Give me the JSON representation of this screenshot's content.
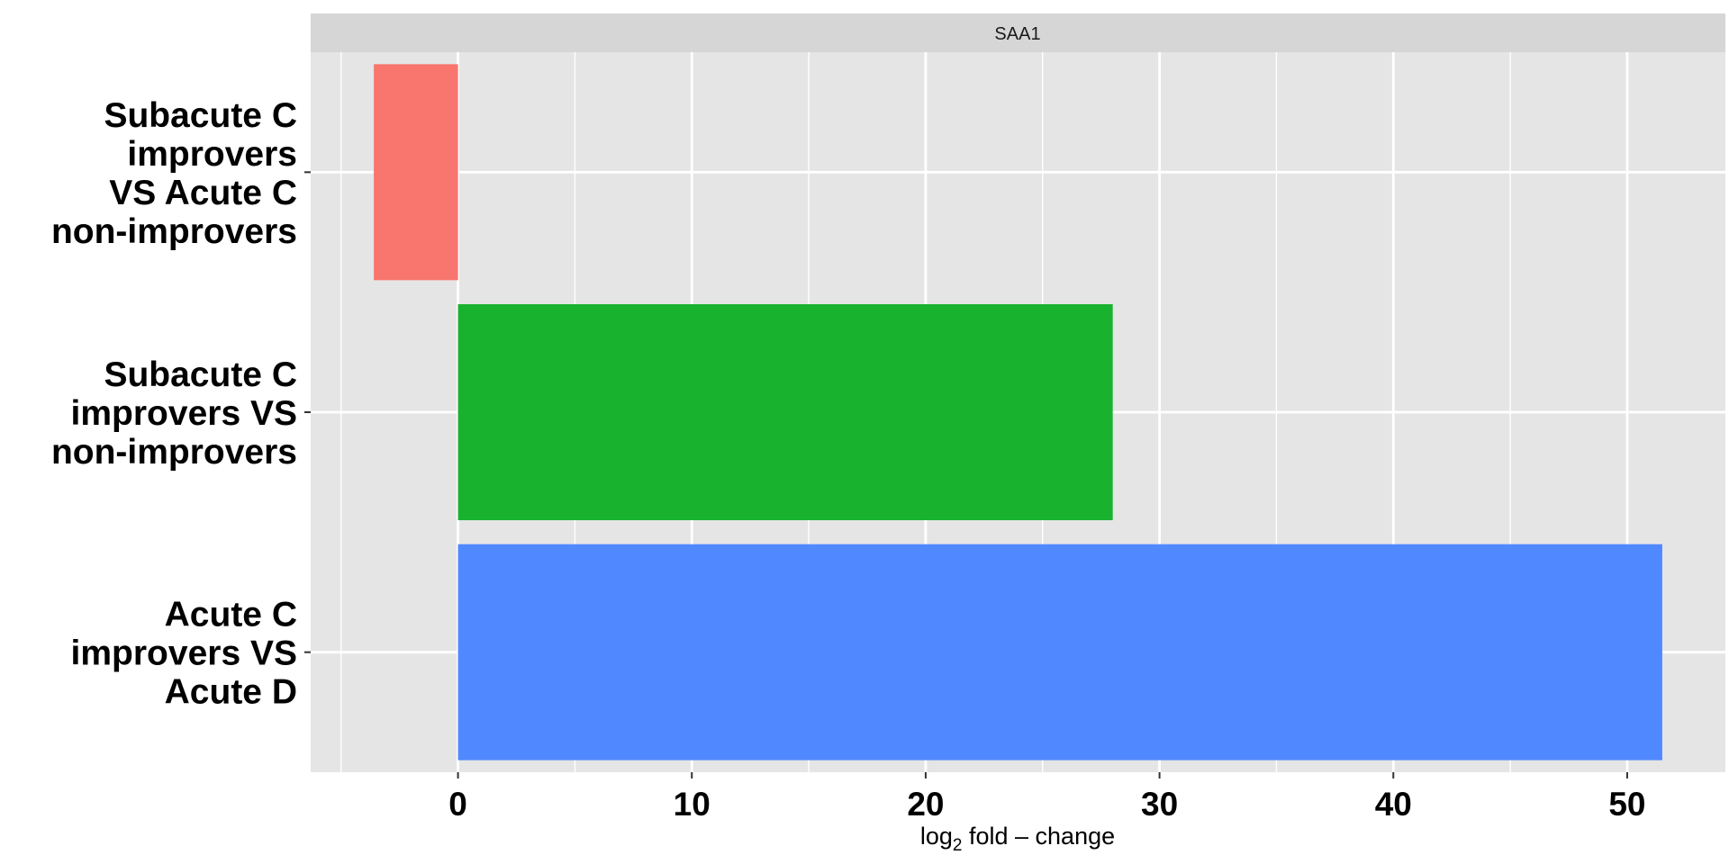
{
  "chart_data": {
    "type": "bar",
    "orientation": "horizontal",
    "facet_label": "SAA1",
    "categories": [
      [
        "Subacute C",
        "improvers",
        "VS Acute C",
        "non-improvers"
      ],
      [
        "Subacute C",
        "improvers VS",
        "non-improvers"
      ],
      [
        "Acute C",
        "improvers VS",
        "Acute D"
      ]
    ],
    "values": [
      -3.6,
      28.0,
      51.5
    ],
    "colors": [
      "#f8766d",
      "#19b22f",
      "#5088ff"
    ],
    "xlabel": {
      "prefix": "log",
      "subscript": "2",
      "suffix": " fold – change"
    },
    "ylabel": "",
    "xlim": [
      -6.3,
      54.2
    ],
    "x_ticks": [
      0,
      10,
      20,
      30,
      40,
      50
    ],
    "x_minor_ticks": [
      -5,
      5,
      15,
      25,
      35,
      45
    ],
    "grid": true,
    "legend": "none"
  }
}
